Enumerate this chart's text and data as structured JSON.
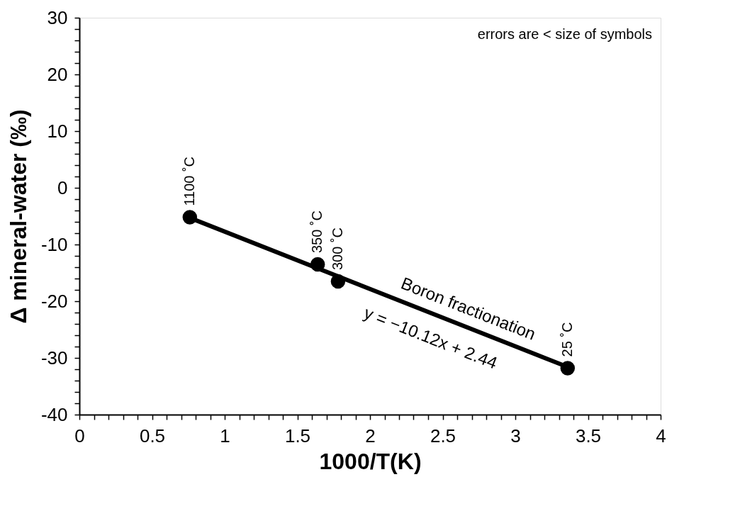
{
  "chart_data": {
    "type": "scatter",
    "xlabel": "1000/T(K)",
    "ylabel": "Δ mineral-water (‰)",
    "series": [
      {
        "type": "line",
        "color": "#000000",
        "x": [
          0.76,
          3.36
        ],
        "values": [
          -5.3,
          -31.6
        ]
      },
      {
        "color": "#000000",
        "marker": "circle",
        "x": [
          0.76,
          1.64,
          1.78,
          3.36
        ],
        "values": [
          -5.2,
          -13.5,
          -16.5,
          -31.8
        ]
      }
    ],
    "xlim": [
      0,
      4
    ],
    "xticks": [
      0,
      {
        "value": 0.1,
        "label": null
      },
      {
        "value": 0.2,
        "label": null
      },
      {
        "value": 0.3,
        "label": null
      },
      {
        "value": 0.4,
        "label": null
      },
      0.5,
      {
        "value": 0.6,
        "label": null
      },
      {
        "value": 0.7,
        "label": null
      },
      {
        "value": 0.8,
        "label": null
      },
      {
        "value": 0.9,
        "label": null
      },
      1,
      {
        "value": 1.1,
        "label": null
      },
      {
        "value": 1.2,
        "label": null
      },
      {
        "value": 1.3,
        "label": null
      },
      {
        "value": 1.4,
        "label": null
      },
      1.5,
      {
        "value": 1.6,
        "label": null
      },
      {
        "value": 1.7,
        "label": null
      },
      {
        "value": 1.8,
        "label": null
      },
      {
        "value": 1.9,
        "label": null
      },
      2,
      {
        "value": 2.1,
        "label": null
      },
      {
        "value": 2.2,
        "label": null
      },
      {
        "value": 2.3,
        "label": null
      },
      {
        "value": 2.4,
        "label": null
      },
      2.5,
      {
        "value": 2.6,
        "label": null
      },
      {
        "value": 2.7,
        "label": null
      },
      {
        "value": 2.8,
        "label": null
      },
      {
        "value": 2.9,
        "label": null
      },
      3,
      {
        "value": 3.1,
        "label": null
      },
      {
        "value": 3.2,
        "label": null
      },
      {
        "value": 3.3,
        "label": null
      },
      {
        "value": 3.4,
        "label": null
      },
      3.5,
      {
        "value": 3.6,
        "label": null
      },
      {
        "value": 3.7,
        "label": null
      },
      {
        "value": 3.8,
        "label": null
      },
      {
        "value": 3.9,
        "label": null
      },
      4
    ],
    "ylim": [
      -40,
      30
    ],
    "yticks": [
      -40,
      {
        "value": -38,
        "label": null
      },
      {
        "value": -36,
        "label": null
      },
      {
        "value": -34,
        "label": null
      },
      {
        "value": -32,
        "label": null
      },
      -30,
      {
        "value": -28,
        "label": null
      },
      {
        "value": -26,
        "label": null
      },
      {
        "value": -24,
        "label": null
      },
      {
        "value": -22,
        "label": null
      },
      -20,
      {
        "value": -18,
        "label": null
      },
      {
        "value": -16,
        "label": null
      },
      {
        "value": -14,
        "label": null
      },
      {
        "value": -12,
        "label": null
      },
      -10,
      {
        "value": -8,
        "label": null
      },
      {
        "value": -6,
        "label": null
      },
      {
        "value": -4,
        "label": null
      },
      {
        "value": -2,
        "label": null
      },
      0,
      {
        "value": 2,
        "label": null
      },
      {
        "value": 4,
        "label": null
      },
      {
        "value": 6,
        "label": null
      },
      {
        "value": 8,
        "label": null
      },
      10,
      {
        "value": 12,
        "label": null
      },
      {
        "value": 14,
        "label": null
      },
      {
        "value": 16,
        "label": null
      },
      {
        "value": 18,
        "label": null
      },
      20,
      {
        "value": 22,
        "label": null
      },
      {
        "value": 24,
        "label": null
      },
      {
        "value": 26,
        "label": null
      },
      {
        "value": 28,
        "label": null
      },
      30
    ],
    "annotations": [
      "errors are < size of symbols",
      {
        "text": "1100 ˚C",
        "x": 0.76,
        "y": -5.2
      },
      {
        "text": "350 ˚C",
        "x": 1.64,
        "y": -13.5
      },
      {
        "text": "300 ˚C",
        "x": 1.78,
        "y": -16.5
      },
      {
        "text": "25 ˚C",
        "x": 3.36,
        "y": -31.8
      },
      "Boron fractionation",
      "y = −10.12x + 2.44"
    ],
    "grid": false
  }
}
